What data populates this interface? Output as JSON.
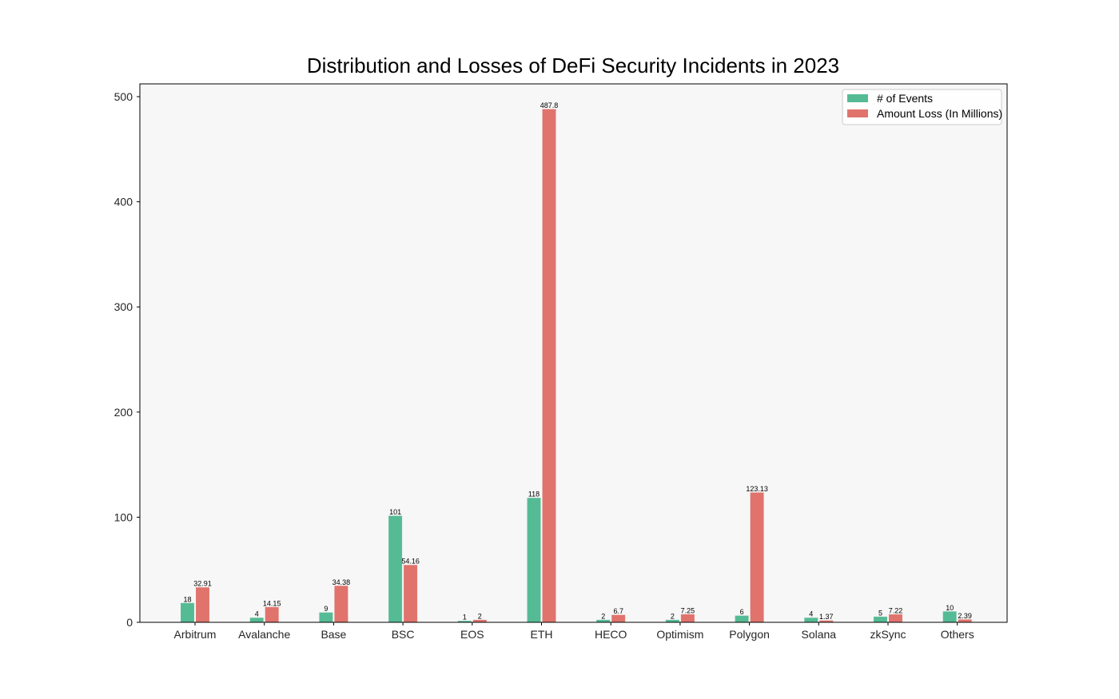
{
  "chart_data": {
    "type": "bar",
    "title": "Distribution and Losses of DeFi Security Incidents in 2023",
    "xlabel": "",
    "ylabel": "",
    "categories": [
      "Arbitrum",
      "Avalanche",
      "Base",
      "BSC",
      "EOS",
      "ETH",
      "HECO",
      "Optimism",
      "Polygon",
      "Solana",
      "zkSync",
      "Others"
    ],
    "series": [
      {
        "name": "# of Events",
        "color": "#55bb95",
        "values": [
          18,
          4,
          9,
          101,
          1,
          118,
          2,
          2,
          6,
          4,
          5,
          10
        ],
        "labels": [
          "18",
          "4",
          "9",
          "101",
          "1",
          "118",
          "2",
          "2",
          "6",
          "4",
          "5",
          "10"
        ]
      },
      {
        "name": "Amount Loss (In Millions)",
        "color": "#e0736c",
        "values": [
          32.91,
          14.15,
          34.38,
          54.16,
          2,
          487.8,
          6.7,
          7.25,
          123.13,
          1.37,
          7.22,
          2.39
        ],
        "labels": [
          "32.91",
          "14.15",
          "34.38",
          "54.16",
          "2",
          "487.8",
          "6.7",
          "7.25",
          "123.13",
          "1.37",
          "7.22",
          "2.39"
        ]
      }
    ],
    "ylim": [
      0,
      512
    ],
    "yticks": [
      0,
      100,
      200,
      300,
      400,
      500
    ],
    "grid": false,
    "legend_position": "top-right",
    "plot_background": "#f7f7f7"
  }
}
